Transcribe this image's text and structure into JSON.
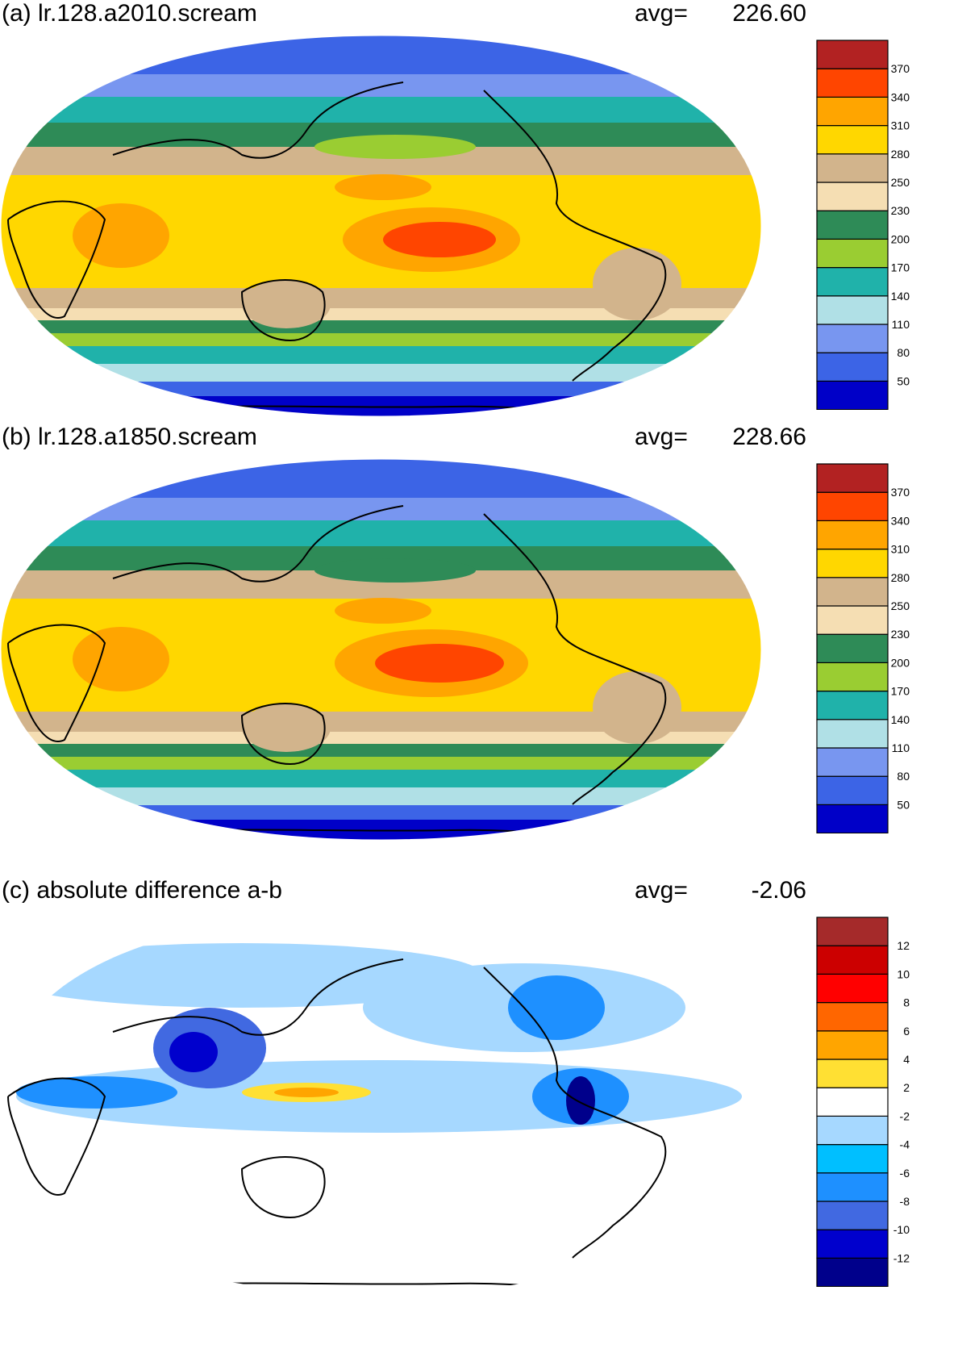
{
  "panels": [
    {
      "title": "(a) lr.128.a2010.scream",
      "avg_label": "avg=",
      "avg_value": "226.60",
      "colorbar": {
        "colors": [
          "#0000c8",
          "#3c64e6",
          "#7896f0",
          "#b0e0e6",
          "#20b2aa",
          "#9acd32",
          "#2e8b57",
          "#f5deb3",
          "#d2b48c",
          "#ffd700",
          "#ffa500",
          "#ff4500",
          "#b22222"
        ],
        "ticks": [
          "50",
          "80",
          "110",
          "140",
          "170",
          "200",
          "230",
          "250",
          "280",
          "310",
          "340",
          "370"
        ]
      }
    },
    {
      "title": "(b) lr.128.a1850.scream",
      "avg_label": "avg=",
      "avg_value": "228.66",
      "colorbar": {
        "colors": [
          "#0000c8",
          "#3c64e6",
          "#7896f0",
          "#b0e0e6",
          "#20b2aa",
          "#9acd32",
          "#2e8b57",
          "#f5deb3",
          "#d2b48c",
          "#ffd700",
          "#ffa500",
          "#ff4500",
          "#b22222"
        ],
        "ticks": [
          "50",
          "80",
          "110",
          "140",
          "170",
          "200",
          "230",
          "250",
          "280",
          "310",
          "340",
          "370"
        ]
      }
    },
    {
      "title": "(c) absolute difference a-b",
      "avg_label": "avg=",
      "avg_value": "-2.06",
      "colorbar": {
        "colors": [
          "#00008b",
          "#0000cd",
          "#4169e1",
          "#1e90ff",
          "#00bfff",
          "#a6d8ff",
          "#ffffff",
          "#ffe033",
          "#ffa500",
          "#ff6600",
          "#ff0000",
          "#cc0000",
          "#a52a2a"
        ],
        "ticks": [
          "-12",
          "-10",
          "-8",
          "-6",
          "-4",
          "-2",
          "2",
          "4",
          "6",
          "8",
          "10",
          "12"
        ]
      }
    }
  ]
}
